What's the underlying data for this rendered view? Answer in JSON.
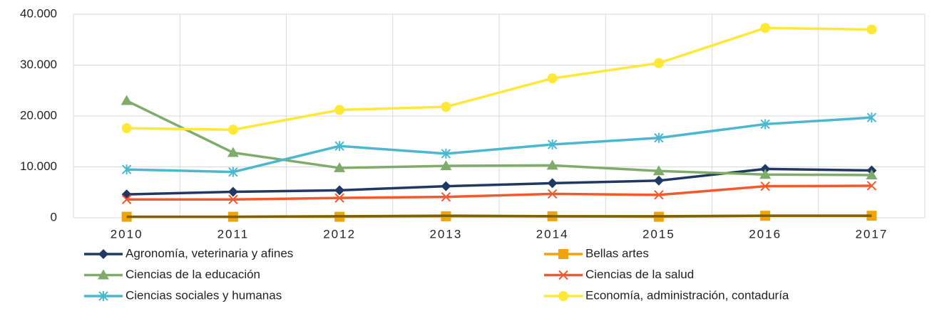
{
  "chart_data": {
    "type": "line",
    "categories": [
      "2010",
      "2011",
      "2012",
      "2013",
      "2014",
      "2015",
      "2016",
      "2017"
    ],
    "ylim": [
      0,
      40000
    ],
    "yticks": [
      0,
      {
        "value": 10000,
        "label": "10.000"
      },
      {
        "value": 20000,
        "label": "20.000"
      },
      {
        "value": 30000,
        "label": "30.000"
      },
      {
        "value": 40000,
        "label": "40.000"
      }
    ],
    "grid": true,
    "legend": "bottom",
    "series": [
      {
        "name": "Agronomía, veterinaria y afines",
        "color": "#1f3864",
        "marker": "diamond",
        "values": [
          4600,
          5100,
          5400,
          6200,
          6800,
          7300,
          9600,
          9300
        ]
      },
      {
        "name": "Bellas artes",
        "color": "#f0a30a",
        "marker": "square",
        "values": [
          200,
          200,
          200,
          300,
          300,
          200,
          400,
          400
        ]
      },
      {
        "name": "Ciencias de la educación",
        "color": "#7fac6b",
        "marker": "triangle",
        "values": [
          23000,
          12800,
          9800,
          10200,
          10300,
          9200,
          8500,
          8400
        ]
      },
      {
        "name": "Ciencias de la salud",
        "color": "#f4592c",
        "marker": "x",
        "values": [
          3600,
          3600,
          3900,
          4100,
          4700,
          4500,
          6200,
          6300
        ]
      },
      {
        "name": "Ciencias sociales y humanas",
        "color": "#4bb8d0",
        "marker": "asterisk",
        "values": [
          9500,
          9000,
          14100,
          12600,
          14400,
          15700,
          18400,
          19700
        ]
      },
      {
        "name": "Economía, administración, contaduría",
        "color": "#ffe837",
        "marker": "circle",
        "values": [
          17600,
          17300,
          21200,
          21800,
          27400,
          30400,
          37300,
          37000
        ]
      },
      {
        "color": "#7f6000",
        "marker": "none",
        "values": [
          200,
          200,
          300,
          400,
          300,
          300,
          400,
          400
        ]
      }
    ]
  }
}
